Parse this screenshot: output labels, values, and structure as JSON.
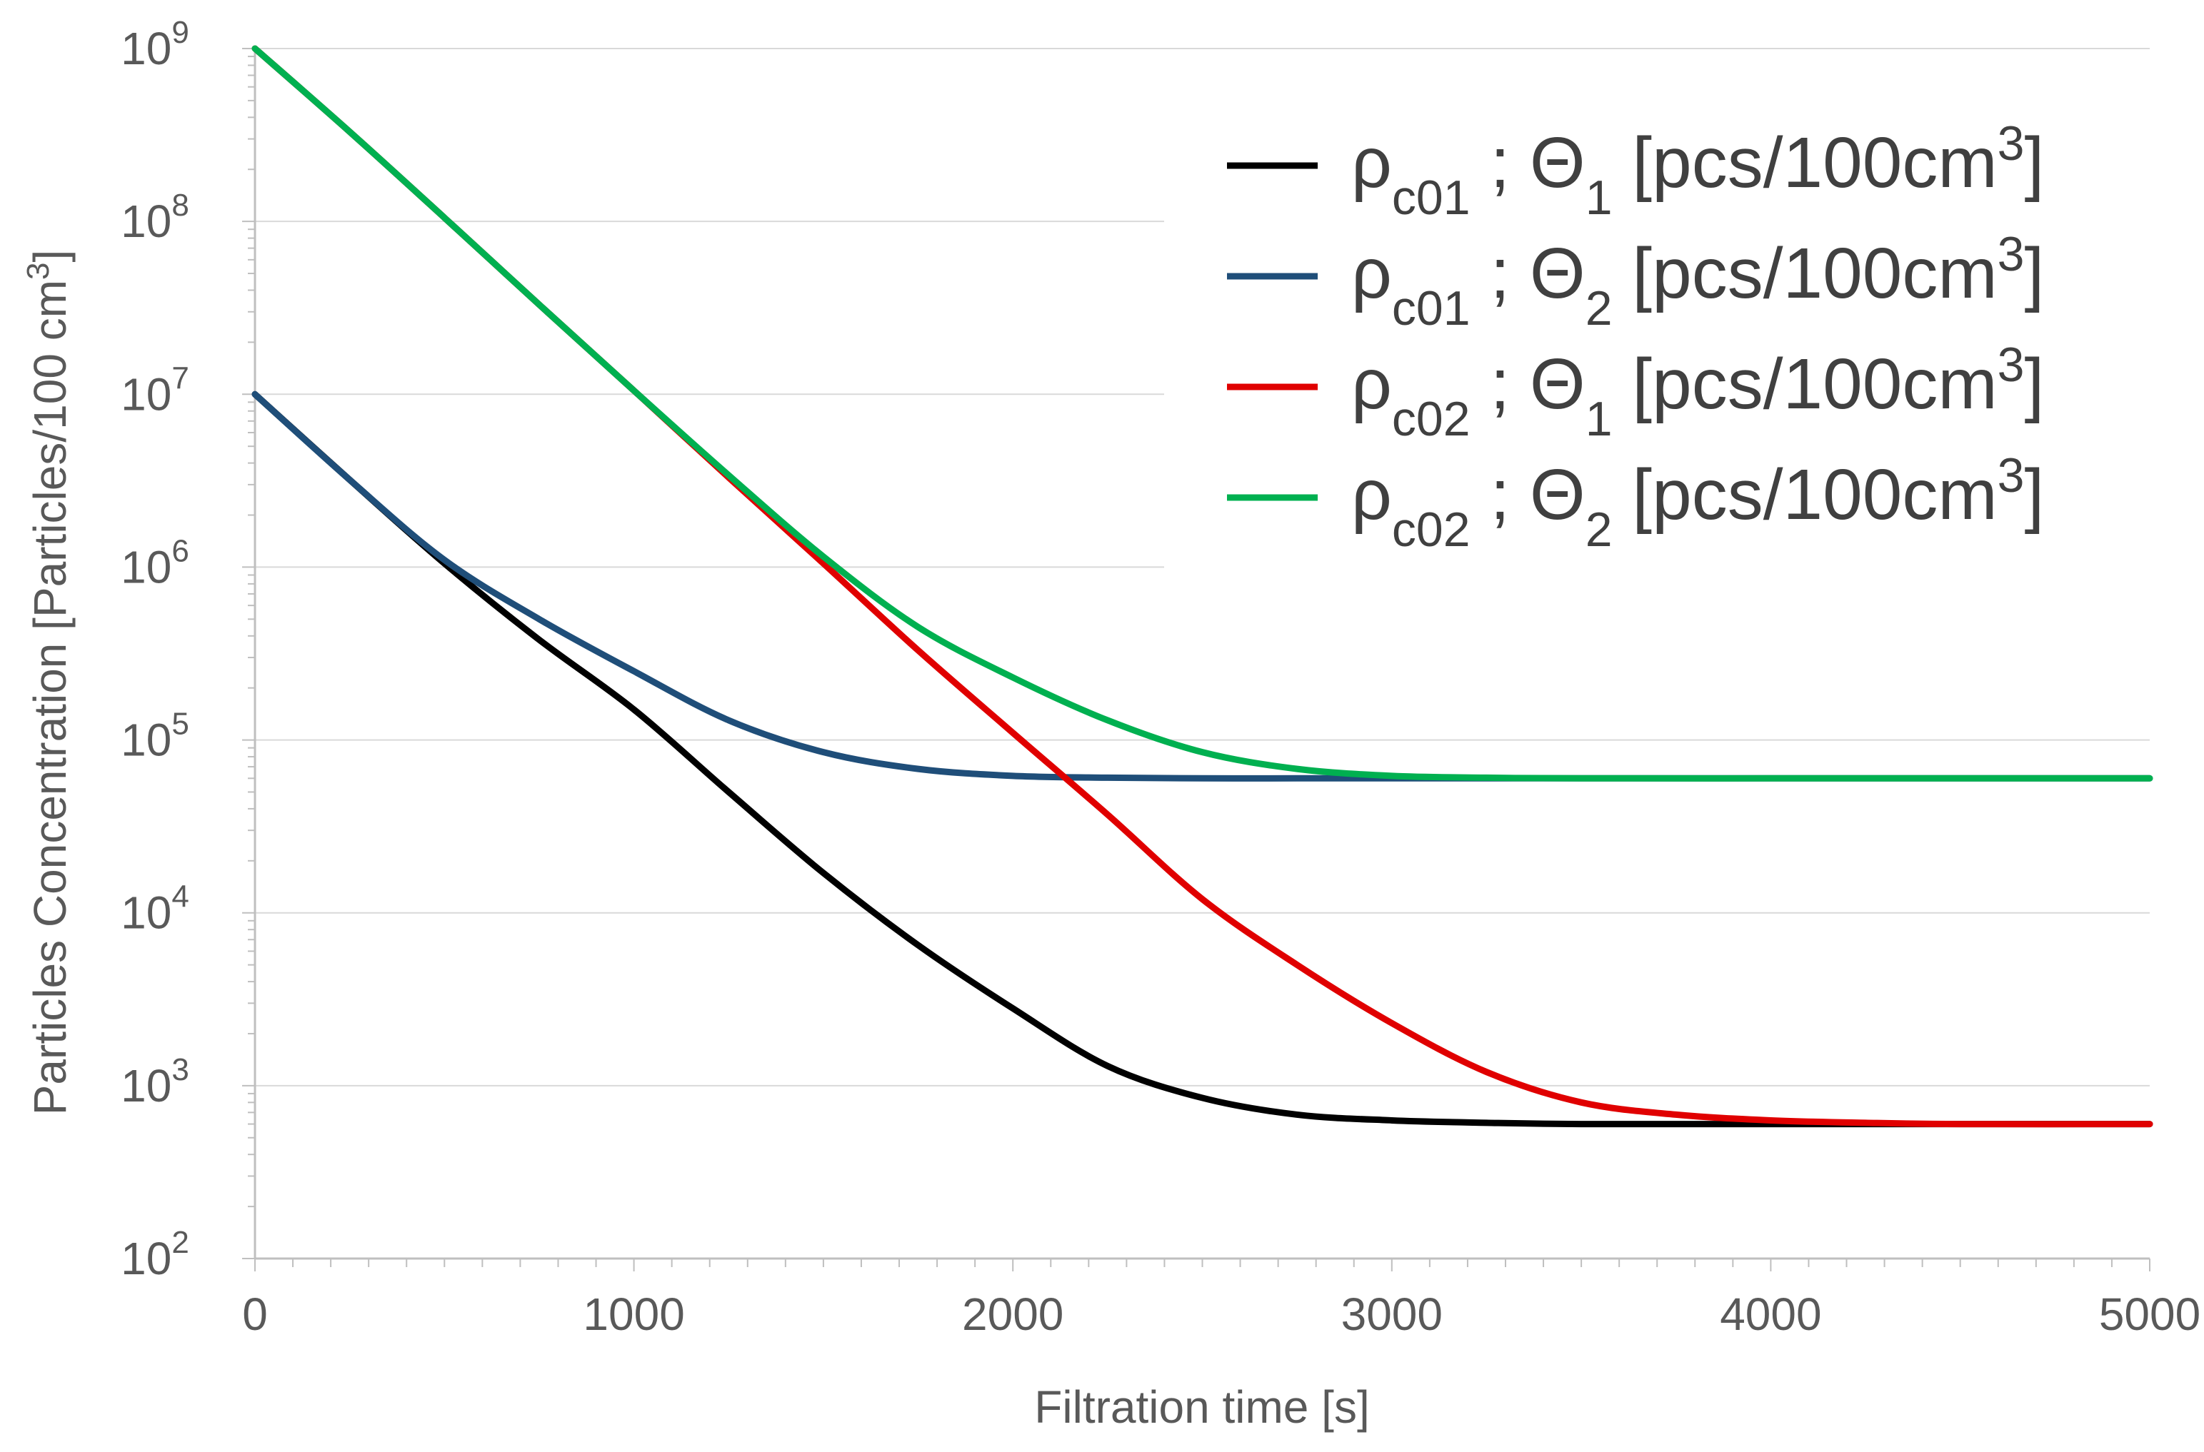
{
  "chart_data": {
    "type": "line",
    "title": "",
    "xlabel": "Filtration time [s]",
    "ylabel": "Particles Concentration [Particles/100 cm",
    "ylabel_sup": "3",
    "ylabel_close": "]",
    "x_scale": "linear",
    "y_scale": "log",
    "xlim": [
      0,
      5000
    ],
    "ylim": [
      100,
      1000000000
    ],
    "x_ticks": [
      0,
      1000,
      2000,
      3000,
      4000,
      5000
    ],
    "x_tick_labels": [
      "0",
      "1000",
      "2000",
      "3000",
      "4000",
      "5000"
    ],
    "y_ticks": [
      100,
      1000,
      10000,
      100000,
      1000000,
      10000000,
      100000000,
      1000000000
    ],
    "y_tick_labels": [
      {
        "base": "10",
        "exp": "2"
      },
      {
        "base": "10",
        "exp": "3"
      },
      {
        "base": "10",
        "exp": "4"
      },
      {
        "base": "10",
        "exp": "5"
      },
      {
        "base": "10",
        "exp": "6"
      },
      {
        "base": "10",
        "exp": "7"
      },
      {
        "base": "10",
        "exp": "8"
      },
      {
        "base": "10",
        "exp": "9"
      }
    ],
    "grid": true,
    "legend_position": "top-right",
    "series": [
      {
        "name": "ρc01 ; Θ1 [pcs/100cm3]",
        "label": {
          "rho": "ρ",
          "rho_sub": "c01",
          "sep": " ; ",
          "theta": "Θ",
          "theta_sub": "1",
          "unit": " [pcs/100cm",
          "unit_sup": "3",
          "unit_close": "]"
        },
        "color": "#000000",
        "x": [
          0,
          250,
          500,
          750,
          1000,
          1250,
          1500,
          1750,
          2000,
          2250,
          2500,
          2750,
          3000,
          3250,
          3500,
          4000,
          4500,
          5000
        ],
        "y": [
          10000000,
          3200000,
          1050000,
          380000,
          150000,
          50000,
          17000,
          6500,
          2800,
          1300,
          850,
          680,
          630,
          610,
          600,
          600,
          600,
          600
        ]
      },
      {
        "name": "ρc01 ; Θ2 [pcs/100cm3]",
        "color": "#1F4E79",
        "label": {
          "rho": "ρ",
          "rho_sub": "c01",
          "sep": " ; ",
          "theta": "Θ",
          "theta_sub": "2",
          "unit": " [pcs/100cm",
          "unit_sup": "3",
          "unit_close": "]"
        },
        "x": [
          0,
          250,
          500,
          750,
          1000,
          1250,
          1500,
          1750,
          2000,
          2250,
          2500,
          2750,
          3000,
          3500,
          4000,
          4500,
          5000
        ],
        "y": [
          10000000,
          3200000,
          1100000,
          500000,
          250000,
          130000,
          85000,
          68000,
          62000,
          60500,
          60000,
          60000,
          60000,
          60000,
          60000,
          60000,
          60000
        ]
      },
      {
        "name": "ρc02 ; Θ1 [pcs/100cm3]",
        "color": "#E00000",
        "label": {
          "rho": "ρ",
          "rho_sub": "c02",
          "sep": " ; ",
          "theta": "Θ",
          "theta_sub": "1",
          "unit": " [pcs/100cm",
          "unit_sup": "3",
          "unit_close": "]"
        },
        "x": [
          0,
          250,
          500,
          750,
          1000,
          1250,
          1500,
          1750,
          2000,
          2250,
          2500,
          2750,
          3000,
          3250,
          3500,
          3750,
          4000,
          4250,
          4500,
          5000
        ],
        "y": [
          1000000000,
          330000000,
          105000000,
          33000000,
          10500000,
          3300000,
          1050000,
          330000,
          110000,
          37000,
          12000,
          5000,
          2300,
          1200,
          800,
          680,
          630,
          610,
          600,
          600
        ]
      },
      {
        "name": "ρc02 ; Θ2 [pcs/100cm3]",
        "color": "#00B050",
        "label": {
          "rho": "ρ",
          "rho_sub": "c02",
          "sep": " ; ",
          "theta": "Θ",
          "theta_sub": "2",
          "unit": " [pcs/100cm",
          "unit_sup": "3",
          "unit_close": "]"
        },
        "x": [
          0,
          250,
          500,
          750,
          1000,
          1250,
          1500,
          1750,
          2000,
          2250,
          2500,
          2750,
          3000,
          3250,
          3500,
          4000,
          4500,
          5000
        ],
        "y": [
          1000000000,
          330000000,
          105000000,
          33000000,
          10500000,
          3400000,
          1150000,
          450000,
          230000,
          130000,
          85000,
          68000,
          62000,
          60500,
          60000,
          60000,
          60000,
          60000
        ]
      }
    ]
  }
}
